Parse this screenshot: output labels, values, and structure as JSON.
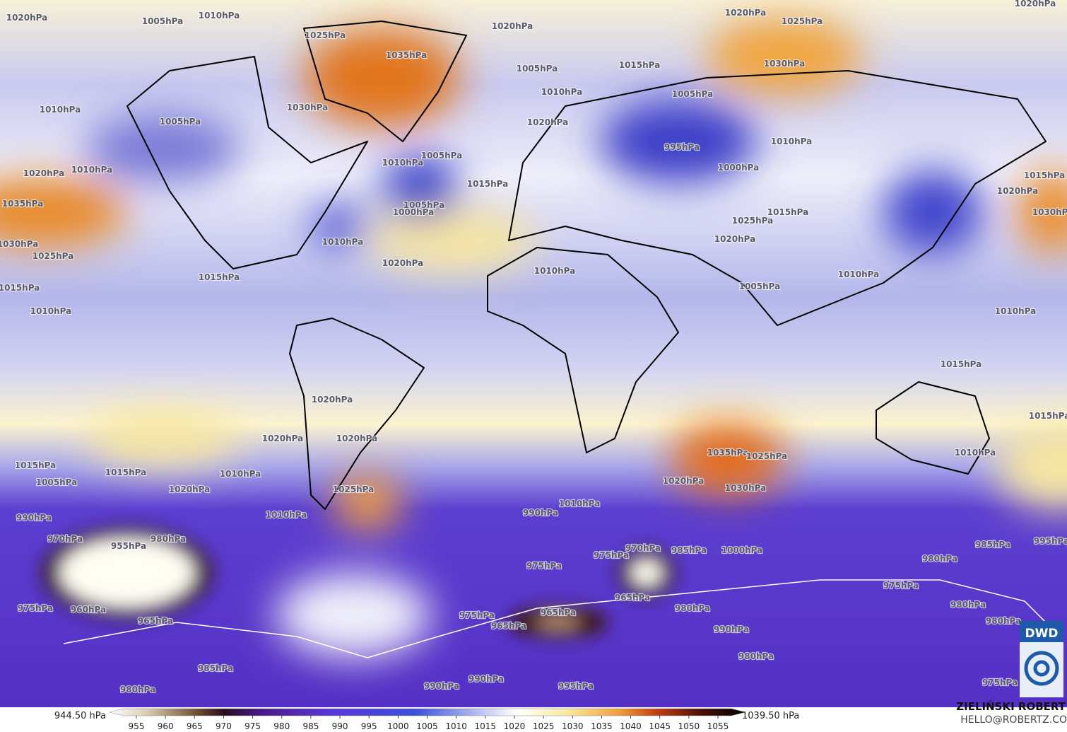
{
  "map": {
    "isobar_labels": [
      "1020hPa",
      "1005hPa",
      "1010hPa",
      "1025hPa",
      "1035hPa",
      "1020hPa",
      "1020hPa",
      "1025hPa",
      "1020hPa",
      "1030hPa",
      "1005hPa",
      "1015hPa",
      "1010hPa",
      "1005hPa",
      "1030hPa",
      "1010hPa",
      "1005hPa",
      "1020hPa",
      "1010hPa",
      "995hPa",
      "1010hPa",
      "1005hPa",
      "1010hPa",
      "1020hPa",
      "1000hPa",
      "1015hPa",
      "1020hPa",
      "1015hPa",
      "1005hPa",
      "1000hPa",
      "1035hPa",
      "1015hPa",
      "1025hPa",
      "1020hPa",
      "1030hPa",
      "1025hPa",
      "1010hPa",
      "1020hPa",
      "1010hPa",
      "1010hPa",
      "1015hPa",
      "1015hPa",
      "1005hPa",
      "1010hPa",
      "1010hPa",
      "1015hPa",
      "1020hPa",
      "1015hPa",
      "1020hPa",
      "1020hPa",
      "1035hPa",
      "1025hPa",
      "1010hPa",
      "1015hPa",
      "1015hPa",
      "1010hPa",
      "1020hPa",
      "1030hPa",
      "1005hPa",
      "1020hPa",
      "1025hPa",
      "1010hPa",
      "990hPa",
      "1010hPa",
      "990hPa",
      "970hPa",
      "980hPa",
      "955hPa",
      "970hPa",
      "975hPa",
      "985hPa",
      "1000hPa",
      "985hPa",
      "975hPa",
      "980hPa",
      "960hPa",
      "965hPa",
      "965hPa",
      "965hPa",
      "975hPa",
      "975hPa",
      "965hPa",
      "980hPa",
      "975hPa",
      "980hPa",
      "990hPa",
      "980hPa",
      "985hPa",
      "980hPa",
      "980hPa",
      "990hPa",
      "990hPa",
      "995hPa",
      "975hPa",
      "995hPa",
      "1030hPa"
    ],
    "colorbar": {
      "min_label": "944.50 hPa",
      "max_label": "1039.50 hPa",
      "ticks": [
        955,
        960,
        965,
        970,
        975,
        980,
        985,
        990,
        995,
        1000,
        1005,
        1010,
        1015,
        1020,
        1025,
        1030,
        1035,
        1040,
        1045,
        1050,
        1055
      ]
    }
  },
  "credits": {
    "author": "ZIELIŃSKI ROBERT",
    "contact": "HELLO@ROBERTZ.CO",
    "logo": "DWD"
  }
}
